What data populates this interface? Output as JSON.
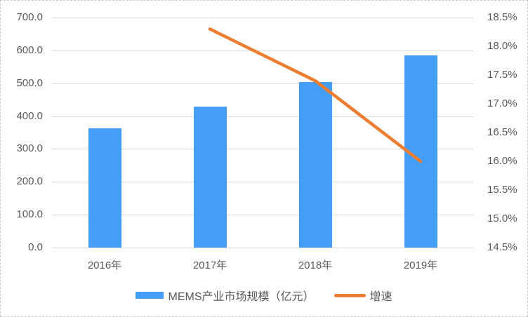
{
  "chart_data": {
    "type": "combo",
    "title": "",
    "categories": [
      "2016年",
      "2017年",
      "2018年",
      "2019年"
    ],
    "series": [
      {
        "name": "MEMS产业市场规模（亿元）",
        "type": "bar",
        "axis": "left",
        "values": [
          363,
          430,
          504,
          585
        ]
      },
      {
        "name": "增速",
        "type": "line",
        "axis": "right",
        "values": [
          null,
          18.3,
          17.4,
          16.0
        ]
      }
    ],
    "left_axis": {
      "min": 0,
      "max": 700,
      "step": 100,
      "tick_labels": [
        "0.0",
        "100.0",
        "200.0",
        "300.0",
        "400.0",
        "500.0",
        "600.0",
        "700.0"
      ]
    },
    "right_axis": {
      "min": 14.5,
      "max": 18.5,
      "step": 0.5,
      "tick_labels": [
        "14.5%",
        "15.0%",
        "15.5%",
        "16.0%",
        "16.5%",
        "17.0%",
        "17.5%",
        "18.0%",
        "18.5%"
      ]
    },
    "grid": true,
    "legend_position": "bottom"
  },
  "colors": {
    "bar": "#459EF5",
    "line": "#ED7D31",
    "gridline": "#D9D9D9",
    "tick_text": "#595959",
    "border": "#C9C9C9",
    "background": "#FFFFFF"
  }
}
